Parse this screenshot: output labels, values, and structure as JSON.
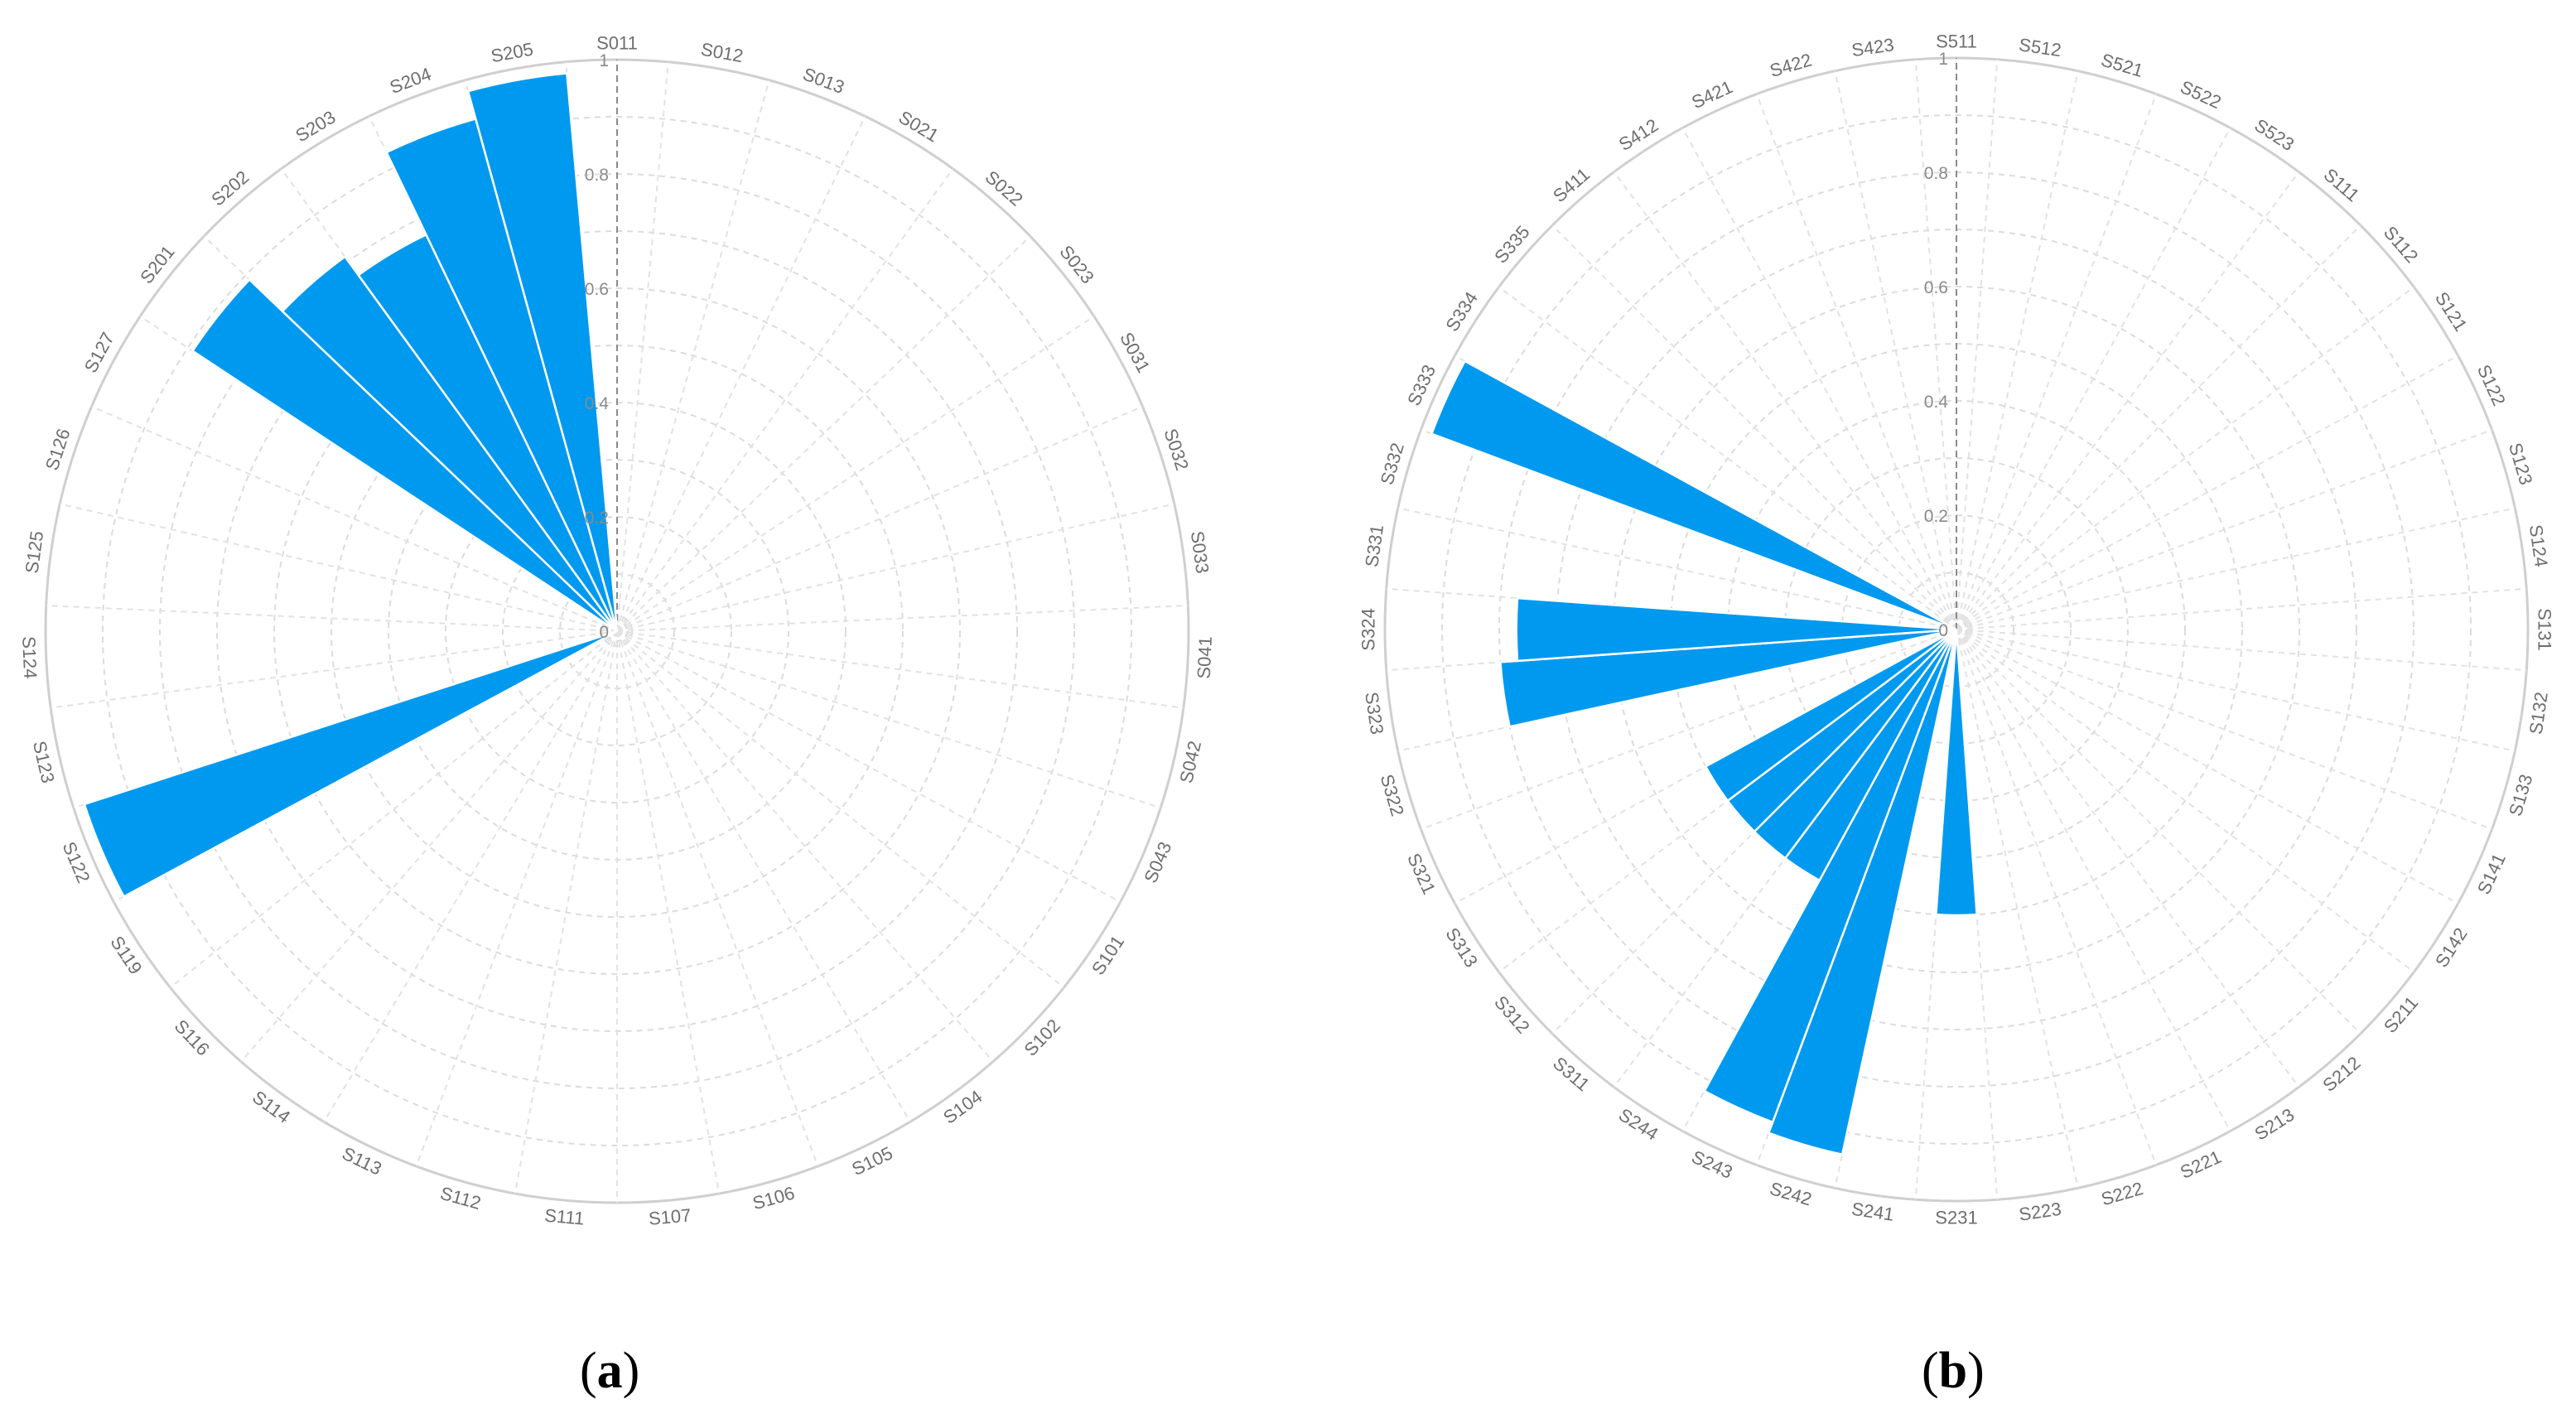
{
  "colors": {
    "bar": "#0099f0",
    "grid": "#dcdcdc"
  },
  "chart_data": [
    {
      "type": "polar-bar",
      "panel_label": "a",
      "radial_ticks": [
        "0",
        "0.2",
        "0.4",
        "0.6",
        "0.8",
        "1"
      ],
      "rlim": [
        0,
        1
      ],
      "grid": true,
      "categories": [
        "S011",
        "S012",
        "S013",
        "S021",
        "S022",
        "S023",
        "S031",
        "S032",
        "S033",
        "S041",
        "S042",
        "S043",
        "S101",
        "S102",
        "S104",
        "S105",
        "S106",
        "S107",
        "S111",
        "S112",
        "S113",
        "S114",
        "S116",
        "S119",
        "S122",
        "S123",
        "S124",
        "S125",
        "S126",
        "S127",
        "S201",
        "S202",
        "S203",
        "S204",
        "S205"
      ],
      "values": [
        0,
        0,
        0,
        0,
        0,
        0,
        0,
        0,
        0,
        0,
        0,
        0,
        0,
        0,
        0,
        0,
        0,
        0,
        0,
        0,
        0,
        0,
        0,
        0,
        0.98,
        0,
        0,
        0,
        0,
        0,
        0.89,
        0.81,
        0.77,
        0.93,
        0.98
      ]
    },
    {
      "type": "polar-bar",
      "panel_label": "b",
      "radial_ticks": [
        "0",
        "0.2",
        "0.4",
        "0.6",
        "0.8",
        "1"
      ],
      "rlim": [
        0,
        1
      ],
      "grid": true,
      "categories": [
        "S511",
        "S512",
        "S521",
        "S522",
        "S523",
        "S111",
        "S112",
        "S121",
        "S122",
        "S123",
        "S124",
        "S131",
        "S132",
        "S133",
        "S141",
        "S142",
        "S211",
        "S212",
        "S213",
        "S221",
        "S222",
        "S223",
        "S231",
        "S241",
        "S242",
        "S243",
        "S244",
        "S311",
        "S312",
        "S313",
        "S321",
        "S322",
        "S323",
        "S324",
        "S331",
        "S332",
        "S333",
        "S334",
        "S335",
        "S411",
        "S412",
        "S421",
        "S422",
        "S423"
      ],
      "values": [
        0,
        0,
        0,
        0,
        0,
        0,
        0,
        0,
        0,
        0,
        0,
        0,
        0,
        0,
        0,
        0,
        0,
        0,
        0,
        0,
        0,
        0,
        0.5,
        0,
        0.94,
        0.92,
        0.5,
        0.5,
        0.5,
        0.5,
        0,
        0,
        0.8,
        0.77,
        0,
        0,
        0.98,
        0,
        0,
        0,
        0,
        0,
        0,
        0
      ]
    }
  ]
}
